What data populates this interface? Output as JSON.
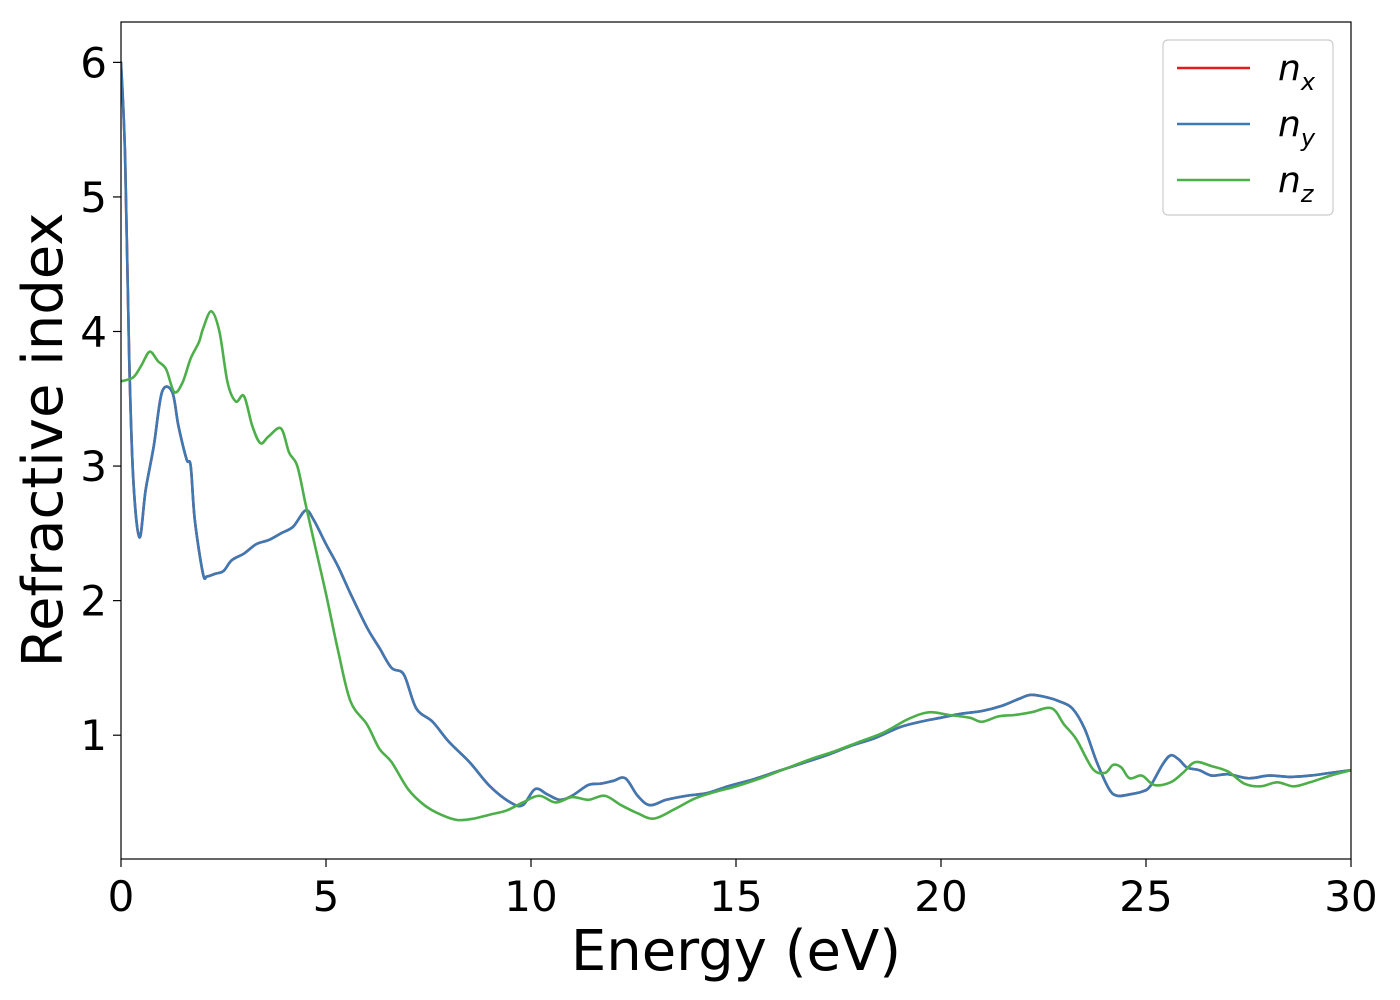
{
  "chart_data": {
    "type": "line",
    "title": "",
    "xlabel": "Energy (eV)",
    "ylabel": "Refractive index",
    "xlim": [
      0,
      30
    ],
    "ylim": [
      0.08,
      6.3
    ],
    "xticks": [
      0,
      5,
      10,
      15,
      20,
      25,
      30
    ],
    "xtick_labels": [
      "0",
      "5",
      "10",
      "15",
      "20",
      "25",
      "30"
    ],
    "yticks": [
      1,
      2,
      3,
      4,
      5,
      6
    ],
    "ytick_labels": [
      "1",
      "2",
      "3",
      "4",
      "5",
      "6"
    ],
    "grid": false,
    "legend_position": "top-right",
    "series": [
      {
        "name": "n",
        "subscript": "x",
        "color": "#e41a1c",
        "x": [
          0,
          0.1,
          0.2,
          0.3,
          0.45,
          0.6,
          0.8,
          1.0,
          1.25,
          1.4,
          1.6,
          1.7,
          1.8,
          2.0,
          2.1,
          2.3,
          2.5,
          2.7,
          3.0,
          3.3,
          3.6,
          3.9,
          4.2,
          4.5,
          4.7,
          5.0,
          5.3,
          5.6,
          6.0,
          6.3,
          6.6,
          6.9,
          7.2,
          7.6,
          8.0,
          8.5,
          9.0,
          9.5,
          9.8,
          10.1,
          10.4,
          10.7,
          11.0,
          11.4,
          11.7,
          12.0,
          12.3,
          12.6,
          12.9,
          13.3,
          13.8,
          14.3,
          14.8,
          15.4,
          16.0,
          16.6,
          17.2,
          17.8,
          18.4,
          19.0,
          19.5,
          20.0,
          20.5,
          21.0,
          21.5,
          21.9,
          22.2,
          22.6,
          22.9,
          23.2,
          23.5,
          23.8,
          24.1,
          24.3,
          24.6,
          24.9,
          25.1,
          25.4,
          25.6,
          25.8,
          26.0,
          26.3,
          26.6,
          27.0,
          27.5,
          28.0,
          28.5,
          29.0,
          29.5,
          30.0
        ],
        "y": [
          6.0,
          5.3,
          3.8,
          2.9,
          2.47,
          2.82,
          3.15,
          3.55,
          3.55,
          3.3,
          3.05,
          3.0,
          2.6,
          2.2,
          2.18,
          2.2,
          2.22,
          2.3,
          2.35,
          2.42,
          2.45,
          2.5,
          2.55,
          2.67,
          2.6,
          2.42,
          2.25,
          2.05,
          1.8,
          1.65,
          1.5,
          1.45,
          1.2,
          1.1,
          0.95,
          0.8,
          0.62,
          0.5,
          0.48,
          0.6,
          0.56,
          0.52,
          0.55,
          0.63,
          0.64,
          0.66,
          0.68,
          0.55,
          0.48,
          0.52,
          0.55,
          0.57,
          0.62,
          0.67,
          0.73,
          0.79,
          0.85,
          0.92,
          0.98,
          1.06,
          1.1,
          1.13,
          1.16,
          1.18,
          1.22,
          1.27,
          1.3,
          1.28,
          1.25,
          1.2,
          1.05,
          0.8,
          0.6,
          0.55,
          0.56,
          0.58,
          0.62,
          0.78,
          0.85,
          0.82,
          0.76,
          0.74,
          0.7,
          0.71,
          0.68,
          0.7,
          0.69,
          0.7,
          0.72,
          0.74
        ]
      },
      {
        "name": "n",
        "subscript": "y",
        "color": "#3d7ab3",
        "x": [
          0,
          0.1,
          0.2,
          0.3,
          0.45,
          0.6,
          0.8,
          1.0,
          1.25,
          1.4,
          1.6,
          1.7,
          1.8,
          2.0,
          2.1,
          2.3,
          2.5,
          2.7,
          3.0,
          3.3,
          3.6,
          3.9,
          4.2,
          4.5,
          4.7,
          5.0,
          5.3,
          5.6,
          6.0,
          6.3,
          6.6,
          6.9,
          7.2,
          7.6,
          8.0,
          8.5,
          9.0,
          9.5,
          9.8,
          10.1,
          10.4,
          10.7,
          11.0,
          11.4,
          11.7,
          12.0,
          12.3,
          12.6,
          12.9,
          13.3,
          13.8,
          14.3,
          14.8,
          15.4,
          16.0,
          16.6,
          17.2,
          17.8,
          18.4,
          19.0,
          19.5,
          20.0,
          20.5,
          21.0,
          21.5,
          21.9,
          22.2,
          22.6,
          22.9,
          23.2,
          23.5,
          23.8,
          24.1,
          24.3,
          24.6,
          24.9,
          25.1,
          25.4,
          25.6,
          25.8,
          26.0,
          26.3,
          26.6,
          27.0,
          27.5,
          28.0,
          28.5,
          29.0,
          29.5,
          30.0
        ],
        "y": [
          6.0,
          5.3,
          3.8,
          2.9,
          2.47,
          2.82,
          3.15,
          3.55,
          3.55,
          3.3,
          3.05,
          3.0,
          2.6,
          2.2,
          2.18,
          2.2,
          2.22,
          2.3,
          2.35,
          2.42,
          2.45,
          2.5,
          2.55,
          2.67,
          2.6,
          2.42,
          2.25,
          2.05,
          1.8,
          1.65,
          1.5,
          1.45,
          1.2,
          1.1,
          0.95,
          0.8,
          0.62,
          0.5,
          0.48,
          0.6,
          0.56,
          0.52,
          0.55,
          0.63,
          0.64,
          0.66,
          0.68,
          0.55,
          0.48,
          0.52,
          0.55,
          0.57,
          0.62,
          0.67,
          0.73,
          0.79,
          0.85,
          0.92,
          0.98,
          1.06,
          1.1,
          1.13,
          1.16,
          1.18,
          1.22,
          1.27,
          1.3,
          1.28,
          1.25,
          1.2,
          1.05,
          0.8,
          0.6,
          0.55,
          0.56,
          0.58,
          0.62,
          0.78,
          0.85,
          0.82,
          0.76,
          0.74,
          0.7,
          0.71,
          0.68,
          0.7,
          0.69,
          0.7,
          0.72,
          0.74
        ]
      },
      {
        "name": "n",
        "subscript": "z",
        "color": "#4daf4a",
        "x": [
          0,
          0.3,
          0.5,
          0.7,
          0.9,
          1.1,
          1.3,
          1.5,
          1.7,
          1.9,
          2.0,
          2.2,
          2.4,
          2.6,
          2.8,
          3.0,
          3.2,
          3.4,
          3.6,
          3.9,
          4.1,
          4.3,
          4.5,
          4.7,
          5.0,
          5.3,
          5.6,
          6.0,
          6.3,
          6.6,
          7.0,
          7.4,
          7.8,
          8.2,
          8.6,
          9.0,
          9.4,
          9.8,
          10.2,
          10.6,
          11.0,
          11.4,
          11.8,
          12.2,
          12.6,
          13.0,
          13.5,
          14.0,
          14.5,
          15.0,
          15.6,
          16.2,
          16.8,
          17.4,
          18.0,
          18.6,
          19.2,
          19.7,
          20.2,
          20.7,
          21.0,
          21.4,
          21.8,
          22.2,
          22.7,
          23.0,
          23.3,
          23.7,
          24.0,
          24.2,
          24.4,
          24.6,
          24.9,
          25.2,
          25.6,
          25.9,
          26.2,
          26.6,
          27.0,
          27.4,
          27.8,
          28.2,
          28.6,
          29.0,
          29.5,
          30.0
        ],
        "y": [
          3.63,
          3.66,
          3.75,
          3.85,
          3.78,
          3.72,
          3.55,
          3.62,
          3.8,
          3.92,
          4.02,
          4.15,
          4.0,
          3.62,
          3.48,
          3.52,
          3.3,
          3.17,
          3.22,
          3.28,
          3.1,
          3.0,
          2.72,
          2.45,
          2.05,
          1.62,
          1.25,
          1.08,
          0.9,
          0.8,
          0.6,
          0.48,
          0.41,
          0.37,
          0.38,
          0.41,
          0.44,
          0.5,
          0.55,
          0.5,
          0.54,
          0.52,
          0.55,
          0.48,
          0.42,
          0.38,
          0.45,
          0.53,
          0.58,
          0.62,
          0.68,
          0.75,
          0.82,
          0.88,
          0.95,
          1.02,
          1.12,
          1.17,
          1.15,
          1.13,
          1.1,
          1.14,
          1.15,
          1.17,
          1.2,
          1.08,
          0.97,
          0.75,
          0.72,
          0.78,
          0.76,
          0.68,
          0.7,
          0.63,
          0.65,
          0.72,
          0.8,
          0.77,
          0.73,
          0.64,
          0.62,
          0.65,
          0.62,
          0.65,
          0.7,
          0.74
        ]
      }
    ]
  }
}
